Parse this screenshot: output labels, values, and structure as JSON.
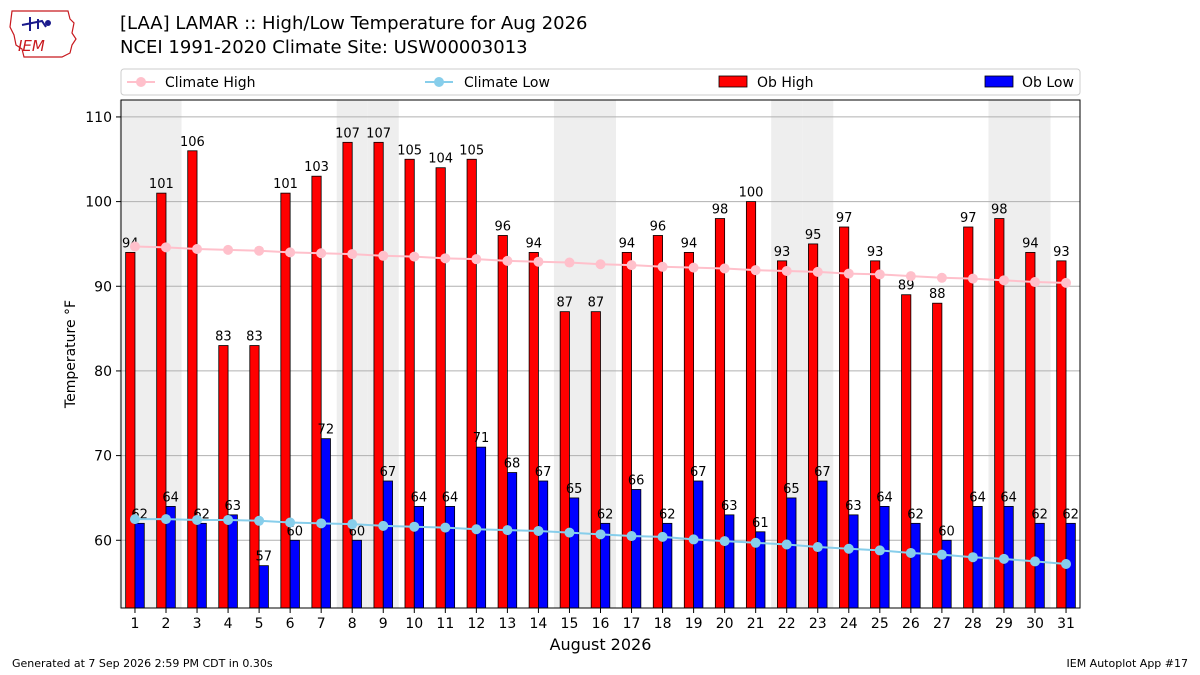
{
  "header": {
    "logo_text": "IEM",
    "title_line1": "[LAA] LAMAR :: High/Low Temperature for Aug 2026",
    "title_line2": "NCEI 1991-2020 Climate Site: USW00003013"
  },
  "footer": {
    "generated": "Generated at 7 Sep 2026 2:59 PM CDT in 0.30s",
    "app": "IEM Autoplot App #17"
  },
  "colors": {
    "ob_high": "#ff0000",
    "ob_low": "#0000ff",
    "climate_high": "#ffc0cb",
    "climate_low": "#87ceeb",
    "weekend_shade": "#eeeeee"
  },
  "chart_data": {
    "type": "bar",
    "xlabel": "August 2026",
    "ylabel": "Temperature °F",
    "ylim": [
      52,
      112
    ],
    "xlim": [
      0.55,
      31.45
    ],
    "yticks": [
      60,
      70,
      80,
      90,
      100,
      110
    ],
    "grid": "horizontal",
    "legend_placement": "top",
    "categories": [
      1,
      2,
      3,
      4,
      5,
      6,
      7,
      8,
      9,
      10,
      11,
      12,
      13,
      14,
      15,
      16,
      17,
      18,
      19,
      20,
      21,
      22,
      23,
      24,
      25,
      26,
      27,
      28,
      29,
      30,
      31
    ],
    "shaded_days": [
      1,
      2,
      8,
      9,
      15,
      16,
      22,
      23,
      29,
      30
    ],
    "series": [
      {
        "name": "Climate High",
        "kind": "line",
        "values": [
          94.7,
          94.6,
          94.4,
          94.3,
          94.2,
          94.0,
          93.9,
          93.8,
          93.6,
          93.5,
          93.3,
          93.2,
          93.0,
          92.9,
          92.8,
          92.6,
          92.5,
          92.3,
          92.2,
          92.1,
          91.9,
          91.8,
          91.7,
          91.5,
          91.4,
          91.2,
          91.0,
          90.9,
          90.7,
          90.5,
          90.4
        ]
      },
      {
        "name": "Climate Low",
        "kind": "line",
        "values": [
          62.5,
          62.5,
          62.4,
          62.4,
          62.3,
          62.1,
          62.0,
          61.9,
          61.7,
          61.6,
          61.5,
          61.3,
          61.2,
          61.1,
          60.9,
          60.7,
          60.5,
          60.4,
          60.1,
          59.9,
          59.7,
          59.5,
          59.2,
          59.0,
          58.8,
          58.5,
          58.3,
          58.0,
          57.8,
          57.5,
          57.2
        ]
      },
      {
        "name": "Ob High",
        "kind": "bar",
        "values": [
          94,
          101,
          106,
          83,
          83,
          101,
          103,
          107,
          107,
          105,
          104,
          105,
          96,
          94,
          87,
          87,
          94,
          96,
          94,
          98,
          100,
          93,
          95,
          97,
          93,
          89,
          88,
          97,
          98,
          94,
          93
        ]
      },
      {
        "name": "Ob Low",
        "kind": "bar",
        "values": [
          62,
          64,
          62,
          63,
          57,
          60,
          72,
          60,
          67,
          64,
          64,
          71,
          68,
          67,
          65,
          62,
          66,
          62,
          67,
          63,
          61,
          65,
          67,
          63,
          64,
          62,
          60,
          64,
          64,
          62,
          62
        ]
      }
    ]
  }
}
